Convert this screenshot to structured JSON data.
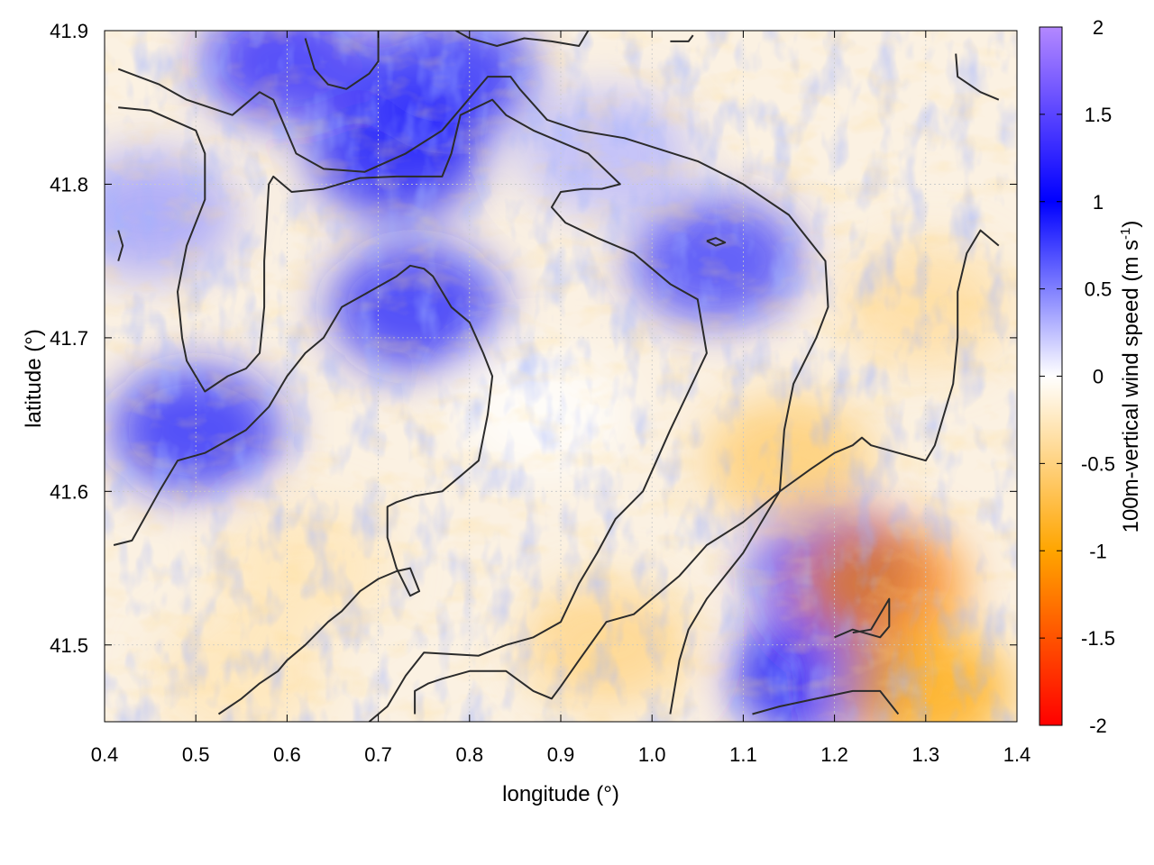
{
  "chart_data": {
    "type": "heatmap",
    "title": "",
    "xlabel": "longitude (°)",
    "ylabel": "latitude (°)",
    "xlim": [
      0.4,
      1.4
    ],
    "ylim": [
      41.45,
      41.9
    ],
    "xticks": [
      "0.4",
      "0.5",
      "0.6",
      "0.7",
      "0.8",
      "0.9",
      "1.0",
      "1.1",
      "1.2",
      "1.3",
      "1.4"
    ],
    "yticks": [
      "41.5",
      "41.6",
      "41.7",
      "41.8",
      "41.9"
    ],
    "grid": true,
    "colorbar": {
      "label": "100m-vertical wind speed",
      "unit": "m s",
      "unit_exponent": "-1",
      "range": [
        -2,
        2
      ],
      "ticks": [
        "-2",
        "-1.5",
        "-1",
        "-0.5",
        "0",
        "0.5",
        "1",
        "1.5",
        "2"
      ],
      "stops": [
        {
          "value": -2,
          "color": "#ff0000"
        },
        {
          "value": -1,
          "color": "#ffa500"
        },
        {
          "value": 0,
          "color": "#ffffff"
        },
        {
          "value": 1,
          "color": "#0000ff"
        },
        {
          "value": 2,
          "color": "#b388ff"
        }
      ]
    },
    "field_description": "positive (blue) along ridges in the west and north-west, negative (orange) in the south-east basin, near zero in the central plain",
    "field_regions": [
      {
        "lon": 0.74,
        "lat": 41.72,
        "value": 0.9
      },
      {
        "lon": 0.72,
        "lat": 41.82,
        "value": 1.0
      },
      {
        "lon": 0.6,
        "lat": 41.88,
        "value": 1.2
      },
      {
        "lon": 0.5,
        "lat": 41.64,
        "value": 0.9
      },
      {
        "lon": 0.78,
        "lat": 41.87,
        "value": 0.9
      },
      {
        "lon": 1.07,
        "lat": 41.75,
        "value": 0.8
      },
      {
        "lon": 1.2,
        "lat": 41.55,
        "value": 0.9
      },
      {
        "lon": 1.18,
        "lat": 41.48,
        "value": 1.0
      },
      {
        "lon": 1.25,
        "lat": 41.54,
        "value": -1.2
      },
      {
        "lon": 1.3,
        "lat": 41.47,
        "value": -1.0
      },
      {
        "lon": 1.15,
        "lat": 41.62,
        "value": -0.6
      },
      {
        "lon": 0.95,
        "lat": 41.5,
        "value": -0.5
      },
      {
        "lon": 0.62,
        "lat": 41.55,
        "value": -0.3
      },
      {
        "lon": 0.88,
        "lat": 41.65,
        "value": 0.0
      },
      {
        "lon": 1.3,
        "lat": 41.72,
        "value": -0.4
      },
      {
        "lon": 0.95,
        "lat": 41.82,
        "value": 0.3
      },
      {
        "lon": 0.45,
        "lat": 41.78,
        "value": 0.4
      },
      {
        "lon": 0.55,
        "lat": 41.48,
        "value": -0.3
      }
    ],
    "contours": [
      [
        [
          0.415,
          41.875
        ],
        [
          0.46,
          41.865
        ],
        [
          0.49,
          41.855
        ],
        [
          0.54,
          41.845
        ],
        [
          0.56,
          41.855
        ],
        [
          0.57,
          41.86
        ],
        [
          0.585,
          41.855
        ],
        [
          0.61,
          41.82
        ],
        [
          0.64,
          41.81
        ],
        [
          0.685,
          41.808
        ],
        [
          0.73,
          41.82
        ],
        [
          0.77,
          41.835
        ],
        [
          0.82,
          41.87
        ],
        [
          0.845,
          41.87
        ],
        [
          0.855,
          41.862
        ],
        [
          0.885,
          41.842
        ],
        [
          0.92,
          41.835
        ],
        [
          0.97,
          41.83
        ],
        [
          1.05,
          41.815
        ],
        [
          1.1,
          41.8
        ],
        [
          1.15,
          41.78
        ],
        [
          1.19,
          41.75
        ],
        [
          1.193,
          41.72
        ],
        [
          1.18,
          41.7
        ],
        [
          1.155,
          41.67
        ],
        [
          1.145,
          41.64
        ],
        [
          1.14,
          41.6
        ],
        [
          1.1,
          41.56
        ],
        [
          1.06,
          41.53
        ],
        [
          1.04,
          41.51
        ],
        [
          1.03,
          41.49
        ],
        [
          1.02,
          41.455
        ]
      ],
      [
        [
          0.415,
          41.85
        ],
        [
          0.45,
          41.848
        ],
        [
          0.5,
          41.835
        ],
        [
          0.51,
          41.82
        ],
        [
          0.51,
          41.79
        ],
        [
          0.49,
          41.76
        ],
        [
          0.48,
          41.73
        ],
        [
          0.485,
          41.7
        ],
        [
          0.49,
          41.685
        ],
        [
          0.51,
          41.665
        ],
        [
          0.535,
          41.675
        ],
        [
          0.555,
          41.68
        ],
        [
          0.57,
          41.69
        ],
        [
          0.575,
          41.72
        ],
        [
          0.575,
          41.75
        ],
        [
          0.58,
          41.8
        ],
        [
          0.585,
          41.805
        ],
        [
          0.605,
          41.795
        ],
        [
          0.64,
          41.797
        ],
        [
          0.68,
          41.804
        ],
        [
          0.72,
          41.805
        ],
        [
          0.77,
          41.805
        ],
        [
          0.78,
          41.82
        ],
        [
          0.79,
          41.845
        ],
        [
          0.825,
          41.855
        ],
        [
          0.84,
          41.845
        ],
        [
          0.87,
          41.835
        ],
        [
          0.93,
          41.82
        ],
        [
          0.965,
          41.8
        ],
        [
          0.945,
          41.797
        ],
        [
          0.925,
          41.797
        ],
        [
          0.9,
          41.795
        ],
        [
          0.89,
          41.785
        ],
        [
          0.905,
          41.775
        ],
        [
          0.94,
          41.765
        ],
        [
          0.98,
          41.755
        ],
        [
          1.0,
          41.745
        ],
        [
          1.02,
          41.735
        ],
        [
          1.05,
          41.725
        ],
        [
          1.06,
          41.69
        ],
        [
          1.04,
          41.665
        ],
        [
          1.02,
          41.64
        ],
        [
          1.005,
          41.62
        ],
        [
          0.99,
          41.6
        ],
        [
          0.96,
          41.582
        ],
        [
          0.94,
          41.56
        ],
        [
          0.92,
          41.54
        ],
        [
          0.9,
          41.515
        ],
        [
          0.87,
          41.505
        ],
        [
          0.84,
          41.5
        ],
        [
          0.81,
          41.493
        ],
        [
          0.75,
          41.495
        ],
        [
          0.73,
          41.48
        ],
        [
          0.71,
          41.46
        ],
        [
          0.69,
          41.45
        ]
      ],
      [
        [
          0.41,
          41.565
        ],
        [
          0.43,
          41.568
        ],
        [
          0.46,
          41.6
        ],
        [
          0.48,
          41.62
        ],
        [
          0.51,
          41.625
        ],
        [
          0.555,
          41.64
        ],
        [
          0.58,
          41.655
        ],
        [
          0.6,
          41.675
        ],
        [
          0.62,
          41.69
        ],
        [
          0.64,
          41.7
        ],
        [
          0.66,
          41.72
        ],
        [
          0.69,
          41.73
        ],
        [
          0.72,
          41.74
        ],
        [
          0.735,
          41.747
        ],
        [
          0.75,
          41.745
        ],
        [
          0.76,
          41.74
        ],
        [
          0.78,
          41.72
        ],
        [
          0.8,
          41.71
        ],
        [
          0.815,
          41.69
        ],
        [
          0.825,
          41.675
        ],
        [
          0.82,
          41.65
        ],
        [
          0.81,
          41.62
        ],
        [
          0.79,
          41.61
        ],
        [
          0.77,
          41.6
        ],
        [
          0.74,
          41.597
        ],
        [
          0.72,
          41.593
        ],
        [
          0.71,
          41.59
        ],
        [
          0.71,
          41.57
        ],
        [
          0.72,
          41.55
        ],
        [
          0.735,
          41.532
        ],
        [
          0.745,
          41.535
        ],
        [
          0.735,
          41.55
        ],
        [
          0.72,
          41.548
        ],
        [
          0.7,
          41.543
        ],
        [
          0.68,
          41.535
        ],
        [
          0.66,
          41.522
        ],
        [
          0.645,
          41.515
        ],
        [
          0.62,
          41.5
        ],
        [
          0.6,
          41.49
        ],
        [
          0.59,
          41.483
        ],
        [
          0.57,
          41.475
        ],
        [
          0.55,
          41.465
        ],
        [
          0.525,
          41.455
        ]
      ],
      [
        [
          0.74,
          41.455
        ],
        [
          0.74,
          41.47
        ],
        [
          0.755,
          41.475
        ],
        [
          0.77,
          41.478
        ],
        [
          0.8,
          41.483
        ],
        [
          0.84,
          41.483
        ],
        [
          0.87,
          41.47
        ],
        [
          0.89,
          41.465
        ],
        [
          0.9,
          41.473
        ],
        [
          0.92,
          41.49
        ],
        [
          0.95,
          41.515
        ],
        [
          0.98,
          41.52
        ],
        [
          1.0,
          41.53
        ],
        [
          1.03,
          41.545
        ],
        [
          1.06,
          41.565
        ],
        [
          1.1,
          41.58
        ],
        [
          1.14,
          41.6
        ],
        [
          1.175,
          41.615
        ],
        [
          1.2,
          41.625
        ],
        [
          1.22,
          41.63
        ],
        [
          1.23,
          41.635
        ],
        [
          1.24,
          41.63
        ],
        [
          1.27,
          41.625
        ],
        [
          1.3,
          41.62
        ],
        [
          1.31,
          41.63
        ],
        [
          1.32,
          41.65
        ],
        [
          1.33,
          41.67
        ],
        [
          1.335,
          41.7
        ],
        [
          1.335,
          41.73
        ],
        [
          1.345,
          41.755
        ],
        [
          1.36,
          41.77
        ],
        [
          1.38,
          41.76
        ]
      ],
      [
        [
          1.11,
          41.455
        ],
        [
          1.14,
          41.46
        ],
        [
          1.18,
          41.465
        ],
        [
          1.22,
          41.47
        ],
        [
          1.25,
          41.47
        ],
        [
          1.27,
          41.455
        ]
      ],
      [
        [
          1.2,
          41.505
        ],
        [
          1.22,
          41.51
        ],
        [
          1.25,
          41.505
        ],
        [
          1.26,
          41.512
        ],
        [
          1.26,
          41.53
        ],
        [
          1.24,
          41.51
        ],
        [
          1.22,
          41.508
        ]
      ],
      [
        [
          1.06,
          41.763
        ],
        [
          1.07,
          41.765
        ],
        [
          1.08,
          41.762
        ],
        [
          1.07,
          41.76
        ],
        [
          1.06,
          41.763
        ]
      ],
      [
        [
          0.62,
          41.895
        ],
        [
          0.63,
          41.875
        ],
        [
          0.645,
          41.865
        ],
        [
          0.665,
          41.862
        ],
        [
          0.69,
          41.872
        ],
        [
          0.7,
          41.88
        ],
        [
          0.7,
          41.9
        ]
      ],
      [
        [
          0.785,
          41.9
        ],
        [
          0.8,
          41.895
        ],
        [
          0.83,
          41.89
        ],
        [
          0.86,
          41.895
        ],
        [
          0.89,
          41.893
        ],
        [
          0.92,
          41.89
        ],
        [
          0.93,
          41.9
        ]
      ],
      [
        [
          1.02,
          41.893
        ],
        [
          1.04,
          41.893
        ],
        [
          1.045,
          41.897
        ]
      ],
      [
        [
          1.333,
          41.885
        ],
        [
          1.335,
          41.87
        ],
        [
          1.36,
          41.86
        ],
        [
          1.38,
          41.855
        ]
      ],
      [
        [
          0.415,
          41.77
        ],
        [
          0.42,
          41.76
        ],
        [
          0.415,
          41.75
        ]
      ]
    ]
  }
}
